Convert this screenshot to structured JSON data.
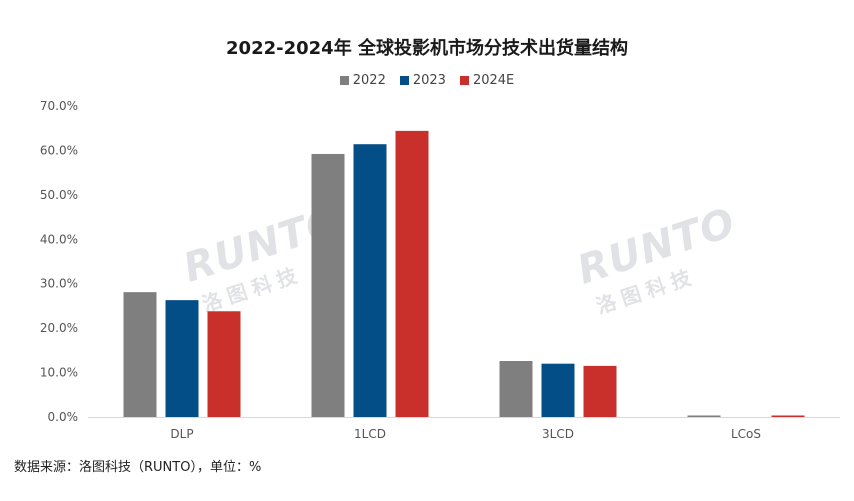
{
  "chart_data": {
    "type": "bar",
    "title": "2022-2024年 全球投影机市场分技术出货量结构",
    "categories": [
      "DLP",
      "1LCD",
      "3LCD",
      "LCoS"
    ],
    "series": [
      {
        "name": "2022",
        "color": "#7f7f7f",
        "values": [
          28.1,
          59.2,
          12.6,
          0.3
        ]
      },
      {
        "name": "2023",
        "color": "#034e86",
        "values": [
          26.3,
          61.4,
          12.0,
          0.0
        ]
      },
      {
        "name": "2024E",
        "color": "#c9302b",
        "values": [
          23.8,
          64.4,
          11.5,
          0.3
        ]
      }
    ],
    "yticks": [
      "0.0%",
      "10.0%",
      "20.0%",
      "30.0%",
      "40.0%",
      "50.0%",
      "60.0%",
      "70.0%"
    ],
    "ylim": [
      0,
      70
    ],
    "grid": false,
    "legend_position": "top-center"
  },
  "watermark": {
    "brand": "RUNTO",
    "brand_cn": "洛图科技"
  },
  "source_note": "数据来源：洛图科技（RUNTO），单位：%"
}
